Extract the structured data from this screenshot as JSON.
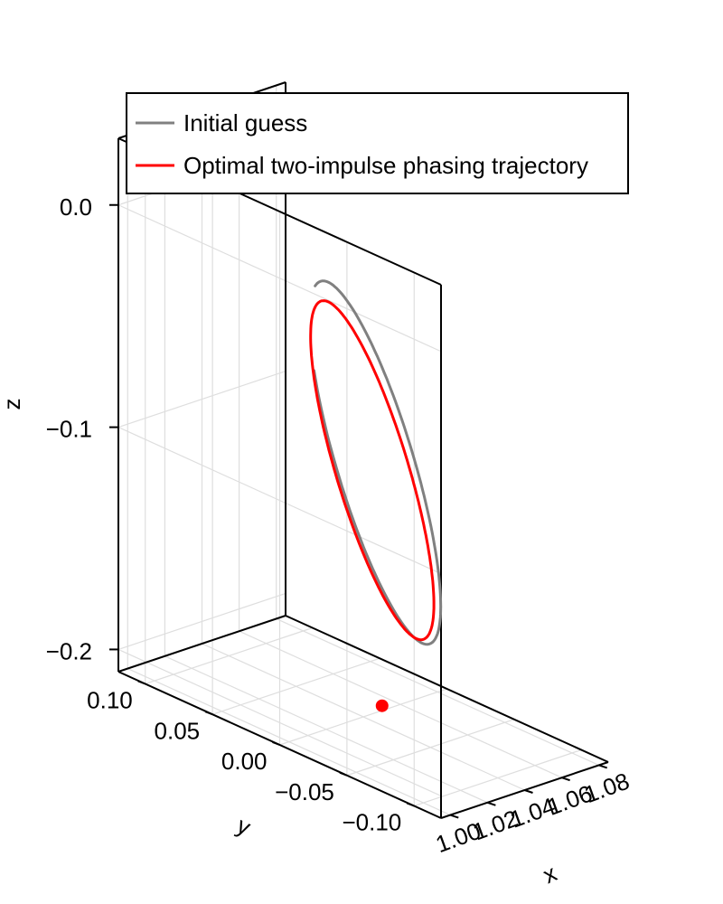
{
  "chart_data": {
    "type": "line",
    "projection": "3d",
    "xlabel": "x",
    "ylabel": "y",
    "zlabel": "z",
    "x_ticks": [
      1.0,
      1.02,
      1.04,
      1.06,
      1.08
    ],
    "x_tick_labels": [
      "1.00",
      "1.02",
      "1.04",
      "1.06",
      "1.08"
    ],
    "y_ticks": [
      0.1,
      0.05,
      0.0,
      -0.05,
      -0.1
    ],
    "y_tick_labels": [
      "0.10",
      "0.05",
      "0.00",
      "−0.05",
      "−0.10"
    ],
    "z_ticks": [
      0.0,
      -0.1,
      -0.2
    ],
    "z_tick_labels": [
      "0.0",
      "−0.1",
      "−0.2"
    ],
    "legend_position": "top",
    "grid": true,
    "series": [
      {
        "name": "Initial guess",
        "color": "#808080",
        "ellipse": {
          "center_x": 1.0435,
          "center_y": -0.0039,
          "center_z": -0.0955,
          "u": {
            "x": 0.0315,
            "y": 0.0079,
            "z": -0.0924
          },
          "v": {
            "x": -0.0101,
            "y": -0.0474,
            "z": 0.0081
          }
        },
        "t_start_deg": 245,
        "t_end_deg": 560
      },
      {
        "name": "Optimal two-impulse phasing trajectory",
        "color": "#ff0000",
        "ellipse": {
          "center_x": 1.042,
          "center_y": -0.0039,
          "center_z": -0.0985,
          "u": {
            "x": 0.0296,
            "y": 0.0076,
            "z": -0.0863
          },
          "v": {
            "x": -0.0096,
            "y": -0.0448,
            "z": 0.0075
          }
        },
        "t_start_deg": 55,
        "t_end_deg": 415
      }
    ],
    "marker": {
      "x": 1.0158,
      "y": -0.0474,
      "z": -0.1852,
      "color": "#ff0000"
    }
  }
}
